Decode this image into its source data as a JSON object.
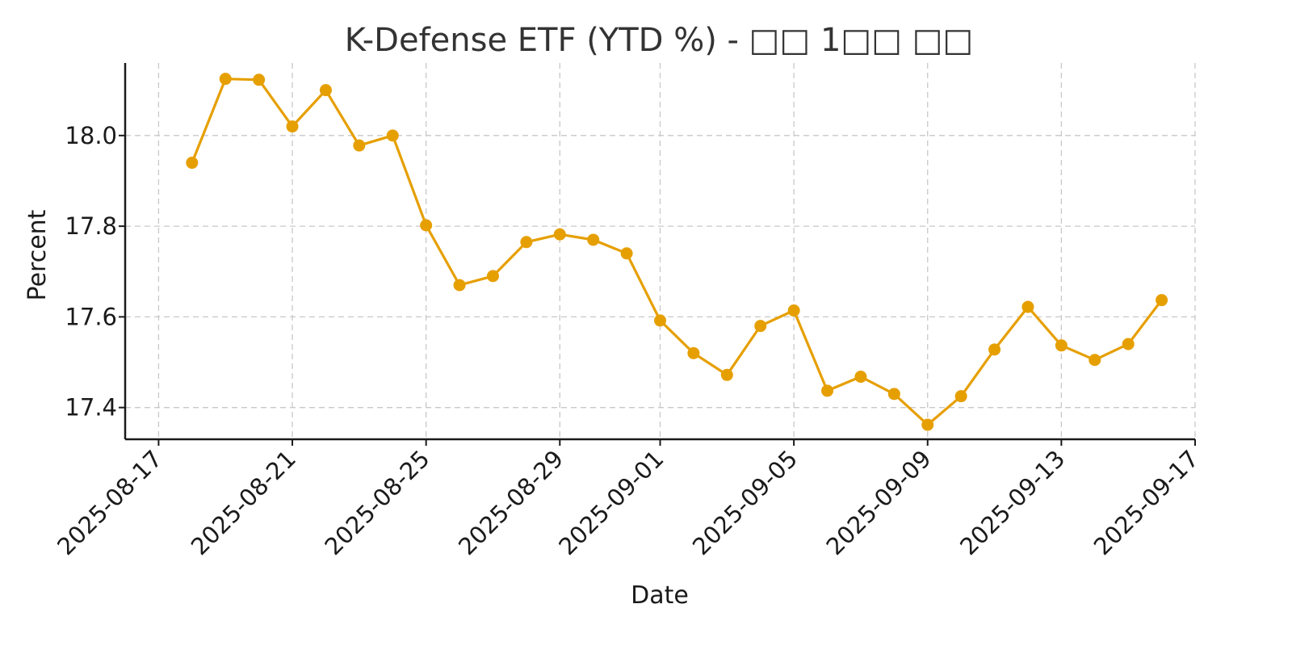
{
  "chart_data": {
    "type": "line",
    "title": "K-Defense ETF (YTD %) - □□ 1□□ □□",
    "xlabel": "Date",
    "ylabel": "Percent",
    "line_color": "#E69F00",
    "grid": true,
    "xlim": [
      "2025-08-16",
      "2025-09-17"
    ],
    "ylim": [
      17.33,
      18.16
    ],
    "yticks": [
      17.4,
      17.6,
      17.8,
      18.0
    ],
    "ytick_labels": [
      "17.4",
      "17.6",
      "17.8",
      "18.0"
    ],
    "xticks": [
      "2025-08-17",
      "2025-08-21",
      "2025-08-25",
      "2025-08-29",
      "2025-09-01",
      "2025-09-05",
      "2025-09-09",
      "2025-09-13",
      "2025-09-17"
    ],
    "series": [
      {
        "name": "K-Defense ETF",
        "x": [
          "2025-08-18",
          "2025-08-19",
          "2025-08-20",
          "2025-08-21",
          "2025-08-22",
          "2025-08-23",
          "2025-08-24",
          "2025-08-25",
          "2025-08-26",
          "2025-08-27",
          "2025-08-28",
          "2025-08-29",
          "2025-08-30",
          "2025-08-31",
          "2025-09-01",
          "2025-09-02",
          "2025-09-03",
          "2025-09-04",
          "2025-09-05",
          "2025-09-06",
          "2025-09-07",
          "2025-09-08",
          "2025-09-09",
          "2025-09-10",
          "2025-09-11",
          "2025-09-12",
          "2025-09-13",
          "2025-09-14",
          "2025-09-15",
          "2025-09-16"
        ],
        "values": [
          17.94,
          18.125,
          18.123,
          18.02,
          18.1,
          17.978,
          18.0,
          17.802,
          17.67,
          17.69,
          17.765,
          17.782,
          17.77,
          17.74,
          17.592,
          17.52,
          17.472,
          17.58,
          17.614,
          17.437,
          17.468,
          17.43,
          17.362,
          17.425,
          17.528,
          17.622,
          17.537,
          17.505,
          17.54,
          17.637
        ]
      }
    ]
  }
}
